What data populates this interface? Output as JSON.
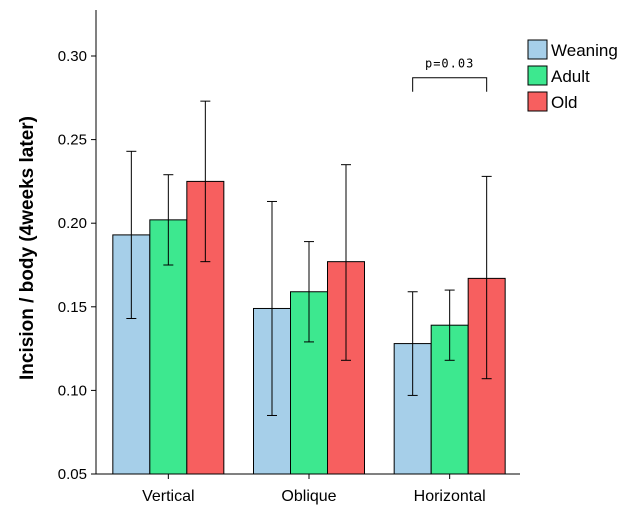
{
  "chart_data": {
    "type": "bar",
    "categories": [
      "Vertical",
      "Oblique",
      "Horizontal"
    ],
    "ylabel": "Incision / body (4weeks later)",
    "xlabel": "",
    "ylim": [
      0.05,
      0.33
    ],
    "yticks": [
      "0.05",
      "0.10",
      "0.15",
      "0.20",
      "0.25",
      "0.30"
    ],
    "grid": false,
    "legend_position": "top-right",
    "series": [
      {
        "name": "Weaning",
        "color": "#a6cfe9",
        "values": [
          0.193,
          0.149,
          0.128
        ],
        "err_low": [
          0.143,
          0.085,
          0.097
        ],
        "err_high": [
          0.243,
          0.213,
          0.159
        ]
      },
      {
        "name": "Adult",
        "color": "#3de88f",
        "values": [
          0.202,
          0.159,
          0.139
        ],
        "err_low": [
          0.175,
          0.129,
          0.118
        ],
        "err_high": [
          0.229,
          0.189,
          0.16
        ]
      },
      {
        "name": "Old",
        "color": "#f75f5f",
        "values": [
          0.225,
          0.177,
          0.167
        ],
        "err_low": [
          0.177,
          0.118,
          0.107
        ],
        "err_high": [
          0.273,
          0.235,
          0.228
        ]
      }
    ],
    "annotations": [
      {
        "text": "p=0.03",
        "category": "Horizontal",
        "from_series": "Weaning",
        "to_series": "Old",
        "y": 0.287
      }
    ]
  }
}
